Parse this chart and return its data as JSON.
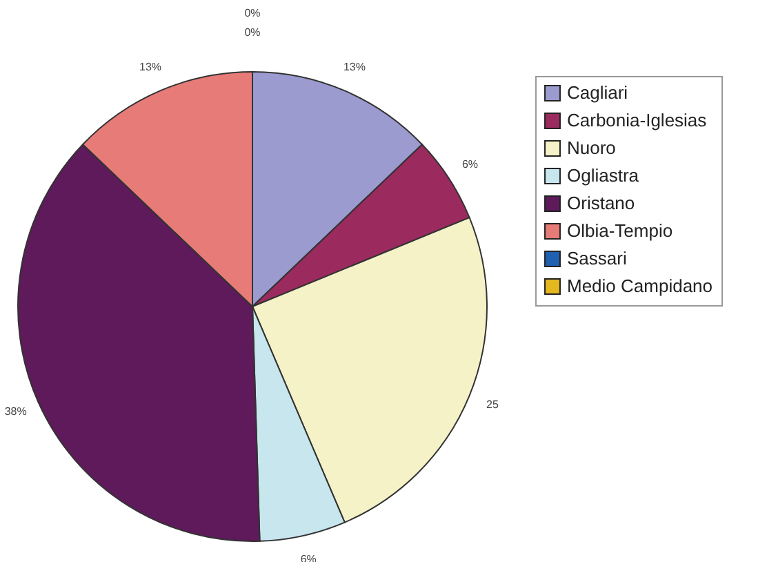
{
  "chart_data": {
    "type": "pie",
    "categories": [
      "Cagliari",
      "Carbonia-Iglesias",
      "Nuoro",
      "Ogliastra",
      "Oristano",
      "Olbia-Tempio",
      "Sassari",
      "Medio Campidano"
    ],
    "values": [
      13,
      6,
      25,
      6,
      38,
      13,
      0,
      0
    ],
    "value_labels": [
      "13%",
      "6%",
      "25",
      "6%",
      "38%",
      "13%",
      "0%",
      "0%"
    ],
    "colors": [
      "#9b9bd0",
      "#9b2a5e",
      "#f5f2c8",
      "#c8e6ee",
      "#5e1a5a",
      "#e67b78",
      "#2060b0",
      "#e6b820"
    ],
    "legend": "right"
  }
}
